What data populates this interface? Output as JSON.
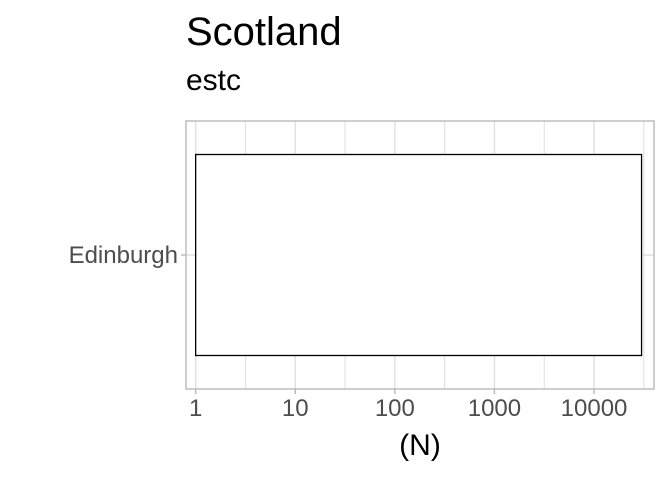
{
  "chart_data": {
    "type": "bar",
    "title": "Scotland",
    "subtitle": "estc",
    "xlabel": "(N)",
    "ylabel": "",
    "x_scale": "log10",
    "xlim": [
      0.8,
      40000
    ],
    "x_ticks": [
      1,
      10,
      100,
      1000,
      10000
    ],
    "x_tick_labels": [
      "1",
      "10",
      "100",
      "1000",
      "10000"
    ],
    "categories": [
      "Edinburgh"
    ],
    "values": [
      30000
    ],
    "bar_base": 1,
    "bar_fill": "#ffffff",
    "bar_stroke": "#000000",
    "grid": true,
    "panel_border": "#b3b3b3",
    "grid_color": "#e0e0e0",
    "legend": "none"
  }
}
